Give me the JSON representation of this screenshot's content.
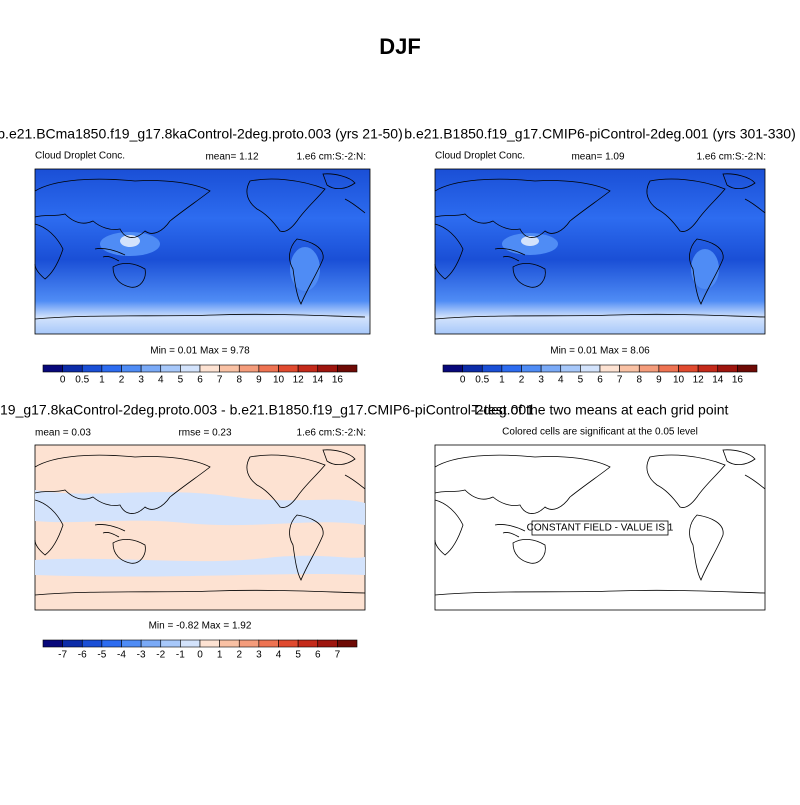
{
  "header": {
    "title": "DJF"
  },
  "panels": [
    {
      "title": "b.e21.BCma1850.f19_g17.8kaControl-2deg.proto.003 (yrs 21-50)",
      "left": "Cloud Droplet Conc.",
      "center": "mean=   1.12",
      "right": "1.e6 cm:S:-2:N:",
      "stats": "Min =  0.01 Max =  9.78",
      "colorbar": {
        "labels": [
          "0",
          "0.5",
          "1",
          "2",
          "3",
          "4",
          "5",
          "6",
          "7",
          "8",
          "9",
          "10",
          "12",
          "14",
          "16"
        ],
        "colors": [
          "#08087a",
          "#0c2ca8",
          "#1a4fd6",
          "#2d6cf0",
          "#4f8cf5",
          "#7aaaf7",
          "#a7c8fa",
          "#d3e3fc",
          "#fde2d2",
          "#f9c1a4",
          "#f49c7b",
          "#ee7352",
          "#e04a2f",
          "#c42a1a",
          "#9e150e",
          "#6e0a05"
        ]
      }
    },
    {
      "title": "b.e21.B1850.f19_g17.CMIP6-piControl-2deg.001 (yrs 301-330)",
      "left": "Cloud Droplet Conc.",
      "center": "mean=   1.09",
      "right": "1.e6 cm:S:-2:N:",
      "stats": "Min =  0.01 Max =  8.06",
      "colorbar": {
        "labels": [
          "0",
          "0.5",
          "1",
          "2",
          "3",
          "4",
          "5",
          "6",
          "7",
          "8",
          "9",
          "10",
          "12",
          "14",
          "16"
        ],
        "colors": [
          "#08087a",
          "#0c2ca8",
          "#1a4fd6",
          "#2d6cf0",
          "#4f8cf5",
          "#7aaaf7",
          "#a7c8fa",
          "#d3e3fc",
          "#fde2d2",
          "#f9c1a4",
          "#f49c7b",
          "#ee7352",
          "#e04a2f",
          "#c42a1a",
          "#9e150e",
          "#6e0a05"
        ]
      }
    },
    {
      "title": "19_g17.8kaControl-2deg.proto.003 - b.e21.B1850.f19_g17.CMIP6-piControl-2deg.001",
      "left": "mean =   0.03",
      "center": "rmse =   0.23",
      "right": "1.e6 cm:S:-2:N:",
      "stats": "Min =  -0.82 Max =   1.92",
      "colorbar": {
        "labels": [
          "-7",
          "-6",
          "-5",
          "-4",
          "-3",
          "-2",
          "-1",
          "0",
          "1",
          "2",
          "3",
          "4",
          "5",
          "6",
          "7"
        ],
        "colors": [
          "#08087a",
          "#0c2ca8",
          "#1a4fd6",
          "#2d6cf0",
          "#4f8cf5",
          "#7aaaf7",
          "#a7c8fa",
          "#d3e3fc",
          "#fde2d2",
          "#f9c1a4",
          "#f49c7b",
          "#ee7352",
          "#e04a2f",
          "#c42a1a",
          "#9e150e",
          "#6e0a05"
        ]
      }
    },
    {
      "title": "T-test of the two means at each grid point",
      "subtitle": "Colored cells are significant at the 0.05 level",
      "note": "CONSTANT FIELD - VALUE IS 1"
    }
  ]
}
